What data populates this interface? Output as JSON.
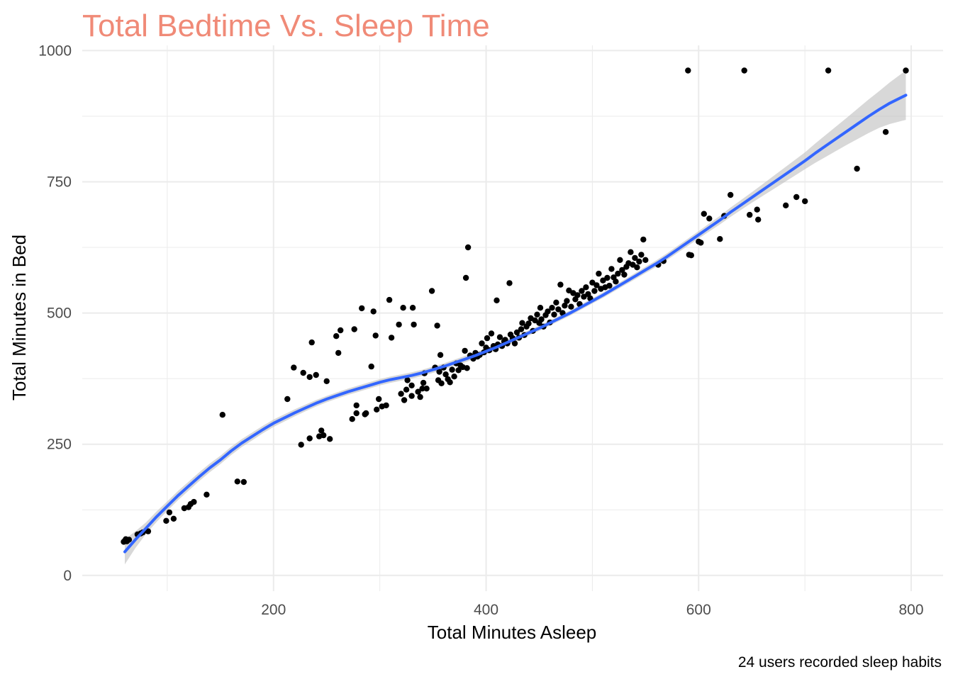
{
  "chart_data": {
    "type": "scatter",
    "title": "Total Bedtime Vs. Sleep Time",
    "xlabel": "Total Minutes Asleep",
    "ylabel": "Total Minutes in Bed",
    "caption": "24 users recorded sleep habits",
    "xlim": [
      20,
      830
    ],
    "ylim": [
      -30,
      1010
    ],
    "x_ticks": [
      200,
      400,
      600,
      800
    ],
    "y_ticks": [
      0,
      250,
      500,
      750,
      1000
    ],
    "grid": true,
    "legend": "none",
    "colors": {
      "title": "#F08A77",
      "points": "#000000",
      "smooth_line": "#3366FF",
      "confidence_band": "#BEBEBE",
      "grid": "#EBEBEB"
    },
    "points": [
      [
        59,
        64
      ],
      [
        60,
        66
      ],
      [
        61,
        69
      ],
      [
        62,
        65
      ],
      [
        64,
        68
      ],
      [
        72,
        78
      ],
      [
        75,
        80
      ],
      [
        77,
        82
      ],
      [
        82,
        84
      ],
      [
        99,
        104
      ],
      [
        102,
        120
      ],
      [
        106,
        108
      ],
      [
        116,
        128
      ],
      [
        120,
        130
      ],
      [
        122,
        136
      ],
      [
        125,
        140
      ],
      [
        137,
        154
      ],
      [
        152,
        306
      ],
      [
        166,
        179
      ],
      [
        172,
        178
      ],
      [
        213,
        336
      ],
      [
        219,
        396
      ],
      [
        226,
        249
      ],
      [
        228,
        386
      ],
      [
        234,
        261
      ],
      [
        234,
        378
      ],
      [
        236,
        444
      ],
      [
        240,
        382
      ],
      [
        243,
        265
      ],
      [
        245,
        276
      ],
      [
        247,
        267
      ],
      [
        250,
        370
      ],
      [
        253,
        260
      ],
      [
        259,
        456
      ],
      [
        261,
        424
      ],
      [
        263,
        467
      ],
      [
        274,
        298
      ],
      [
        276,
        469
      ],
      [
        278,
        309
      ],
      [
        278,
        324
      ],
      [
        283,
        509
      ],
      [
        286,
        307
      ],
      [
        287,
        309
      ],
      [
        292,
        398
      ],
      [
        294,
        503
      ],
      [
        296,
        457
      ],
      [
        297,
        316
      ],
      [
        299,
        336
      ],
      [
        302,
        322
      ],
      [
        306,
        324
      ],
      [
        309,
        525
      ],
      [
        311,
        453
      ],
      [
        318,
        478
      ],
      [
        320,
        346
      ],
      [
        322,
        510
      ],
      [
        323,
        334
      ],
      [
        325,
        354
      ],
      [
        326,
        372
      ],
      [
        330,
        342
      ],
      [
        330,
        362
      ],
      [
        331,
        510
      ],
      [
        332,
        478
      ],
      [
        336,
        350
      ],
      [
        338,
        340
      ],
      [
        340,
        356
      ],
      [
        341,
        367
      ],
      [
        342,
        385
      ],
      [
        344,
        356
      ],
      [
        349,
        542
      ],
      [
        352,
        396
      ],
      [
        354,
        476
      ],
      [
        355,
        372
      ],
      [
        356,
        388
      ],
      [
        357,
        420
      ],
      [
        358,
        366
      ],
      [
        360,
        396
      ],
      [
        362,
        383
      ],
      [
        364,
        374
      ],
      [
        366,
        368
      ],
      [
        368,
        392
      ],
      [
        370,
        379
      ],
      [
        372,
        404
      ],
      [
        374,
        391
      ],
      [
        376,
        400
      ],
      [
        378,
        397
      ],
      [
        380,
        428
      ],
      [
        381,
        567
      ],
      [
        382,
        395
      ],
      [
        383,
        625
      ],
      [
        385,
        419
      ],
      [
        388,
        413
      ],
      [
        390,
        424
      ],
      [
        392,
        417
      ],
      [
        394,
        420
      ],
      [
        396,
        442
      ],
      [
        398,
        425
      ],
      [
        400,
        434
      ],
      [
        401,
        452
      ],
      [
        403,
        429
      ],
      [
        405,
        461
      ],
      [
        407,
        437
      ],
      [
        409,
        431
      ],
      [
        410,
        524
      ],
      [
        411,
        440
      ],
      [
        413,
        454
      ],
      [
        415,
        437
      ],
      [
        417,
        446
      ],
      [
        418,
        449
      ],
      [
        420,
        442
      ],
      [
        422,
        557
      ],
      [
        423,
        459
      ],
      [
        425,
        452
      ],
      [
        427,
        442
      ],
      [
        429,
        463
      ],
      [
        431,
        453
      ],
      [
        433,
        469
      ],
      [
        434,
        481
      ],
      [
        436,
        458
      ],
      [
        438,
        474
      ],
      [
        440,
        480
      ],
      [
        442,
        490
      ],
      [
        444,
        466
      ],
      [
        446,
        486
      ],
      [
        448,
        497
      ],
      [
        450,
        481
      ],
      [
        451,
        510
      ],
      [
        452,
        488
      ],
      [
        454,
        474
      ],
      [
        456,
        496
      ],
      [
        458,
        503
      ],
      [
        460,
        482
      ],
      [
        462,
        510
      ],
      [
        464,
        497
      ],
      [
        466,
        520
      ],
      [
        468,
        507
      ],
      [
        470,
        554
      ],
      [
        472,
        500
      ],
      [
        474,
        514
      ],
      [
        476,
        523
      ],
      [
        478,
        543
      ],
      [
        480,
        512
      ],
      [
        482,
        538
      ],
      [
        484,
        526
      ],
      [
        486,
        534
      ],
      [
        488,
        517
      ],
      [
        490,
        542
      ],
      [
        492,
        531
      ],
      [
        494,
        549
      ],
      [
        496,
        536
      ],
      [
        498,
        528
      ],
      [
        500,
        558
      ],
      [
        502,
        542
      ],
      [
        504,
        553
      ],
      [
        506,
        575
      ],
      [
        508,
        546
      ],
      [
        510,
        562
      ],
      [
        512,
        549
      ],
      [
        514,
        567
      ],
      [
        516,
        552
      ],
      [
        518,
        584
      ],
      [
        520,
        568
      ],
      [
        522,
        560
      ],
      [
        524,
        575
      ],
      [
        526,
        601
      ],
      [
        528,
        582
      ],
      [
        530,
        573
      ],
      [
        532,
        588
      ],
      [
        534,
        595
      ],
      [
        536,
        616
      ],
      [
        538,
        592
      ],
      [
        540,
        605
      ],
      [
        542,
        587
      ],
      [
        544,
        598
      ],
      [
        546,
        611
      ],
      [
        548,
        640
      ],
      [
        550,
        601
      ],
      [
        562,
        592
      ],
      [
        567,
        599
      ],
      [
        590,
        962
      ],
      [
        591,
        611
      ],
      [
        593,
        610
      ],
      [
        600,
        636
      ],
      [
        602,
        634
      ],
      [
        605,
        689
      ],
      [
        610,
        680
      ],
      [
        620,
        641
      ],
      [
        624,
        685
      ],
      [
        630,
        725
      ],
      [
        643,
        962
      ],
      [
        648,
        687
      ],
      [
        655,
        697
      ],
      [
        656,
        678
      ],
      [
        682,
        705
      ],
      [
        692,
        721
      ],
      [
        700,
        713
      ],
      [
        722,
        962
      ],
      [
        749,
        775
      ],
      [
        776,
        845
      ],
      [
        795,
        962
      ]
    ],
    "smooth_curve": [
      [
        60,
        45
      ],
      [
        70,
        68
      ],
      [
        80,
        90
      ],
      [
        90,
        112
      ],
      [
        100,
        132
      ],
      [
        110,
        152
      ],
      [
        120,
        170
      ],
      [
        130,
        188
      ],
      [
        140,
        205
      ],
      [
        150,
        220
      ],
      [
        160,
        237
      ],
      [
        170,
        252
      ],
      [
        180,
        265
      ],
      [
        190,
        278
      ],
      [
        200,
        290
      ],
      [
        210,
        300
      ],
      [
        220,
        310
      ],
      [
        230,
        319
      ],
      [
        240,
        328
      ],
      [
        250,
        336
      ],
      [
        260,
        343
      ],
      [
        270,
        350
      ],
      [
        280,
        356
      ],
      [
        290,
        362
      ],
      [
        300,
        368
      ],
      [
        310,
        373
      ],
      [
        320,
        377
      ],
      [
        330,
        381
      ],
      [
        340,
        386
      ],
      [
        350,
        392
      ],
      [
        360,
        398
      ],
      [
        370,
        405
      ],
      [
        380,
        412
      ],
      [
        390,
        419
      ],
      [
        400,
        427
      ],
      [
        410,
        435
      ],
      [
        420,
        444
      ],
      [
        430,
        453
      ],
      [
        440,
        462
      ],
      [
        450,
        471
      ],
      [
        460,
        481
      ],
      [
        470,
        491
      ],
      [
        480,
        501
      ],
      [
        490,
        512
      ],
      [
        500,
        523
      ],
      [
        510,
        534
      ],
      [
        520,
        546
      ],
      [
        530,
        558
      ],
      [
        540,
        570
      ],
      [
        550,
        582
      ],
      [
        560,
        594
      ],
      [
        570,
        607
      ],
      [
        580,
        621
      ],
      [
        590,
        635
      ],
      [
        600,
        649
      ],
      [
        610,
        663
      ],
      [
        620,
        677
      ],
      [
        630,
        692
      ],
      [
        640,
        706
      ],
      [
        650,
        720
      ],
      [
        660,
        734
      ],
      [
        670,
        748
      ],
      [
        680,
        762
      ],
      [
        690,
        776
      ],
      [
        700,
        790
      ],
      [
        710,
        805
      ],
      [
        720,
        819
      ],
      [
        730,
        833
      ],
      [
        740,
        847
      ],
      [
        750,
        861
      ],
      [
        760,
        875
      ],
      [
        770,
        888
      ],
      [
        780,
        900
      ],
      [
        795,
        915
      ]
    ],
    "band_halfwidth": [
      [
        60,
        24
      ],
      [
        70,
        16
      ],
      [
        80,
        11
      ],
      [
        100,
        9
      ],
      [
        150,
        8
      ],
      [
        200,
        7
      ],
      [
        250,
        6
      ],
      [
        300,
        6
      ],
      [
        350,
        6
      ],
      [
        400,
        6
      ],
      [
        450,
        5
      ],
      [
        500,
        5
      ],
      [
        550,
        6
      ],
      [
        600,
        7
      ],
      [
        650,
        10
      ],
      [
        700,
        16
      ],
      [
        740,
        26
      ],
      [
        770,
        35
      ],
      [
        795,
        47
      ]
    ]
  }
}
